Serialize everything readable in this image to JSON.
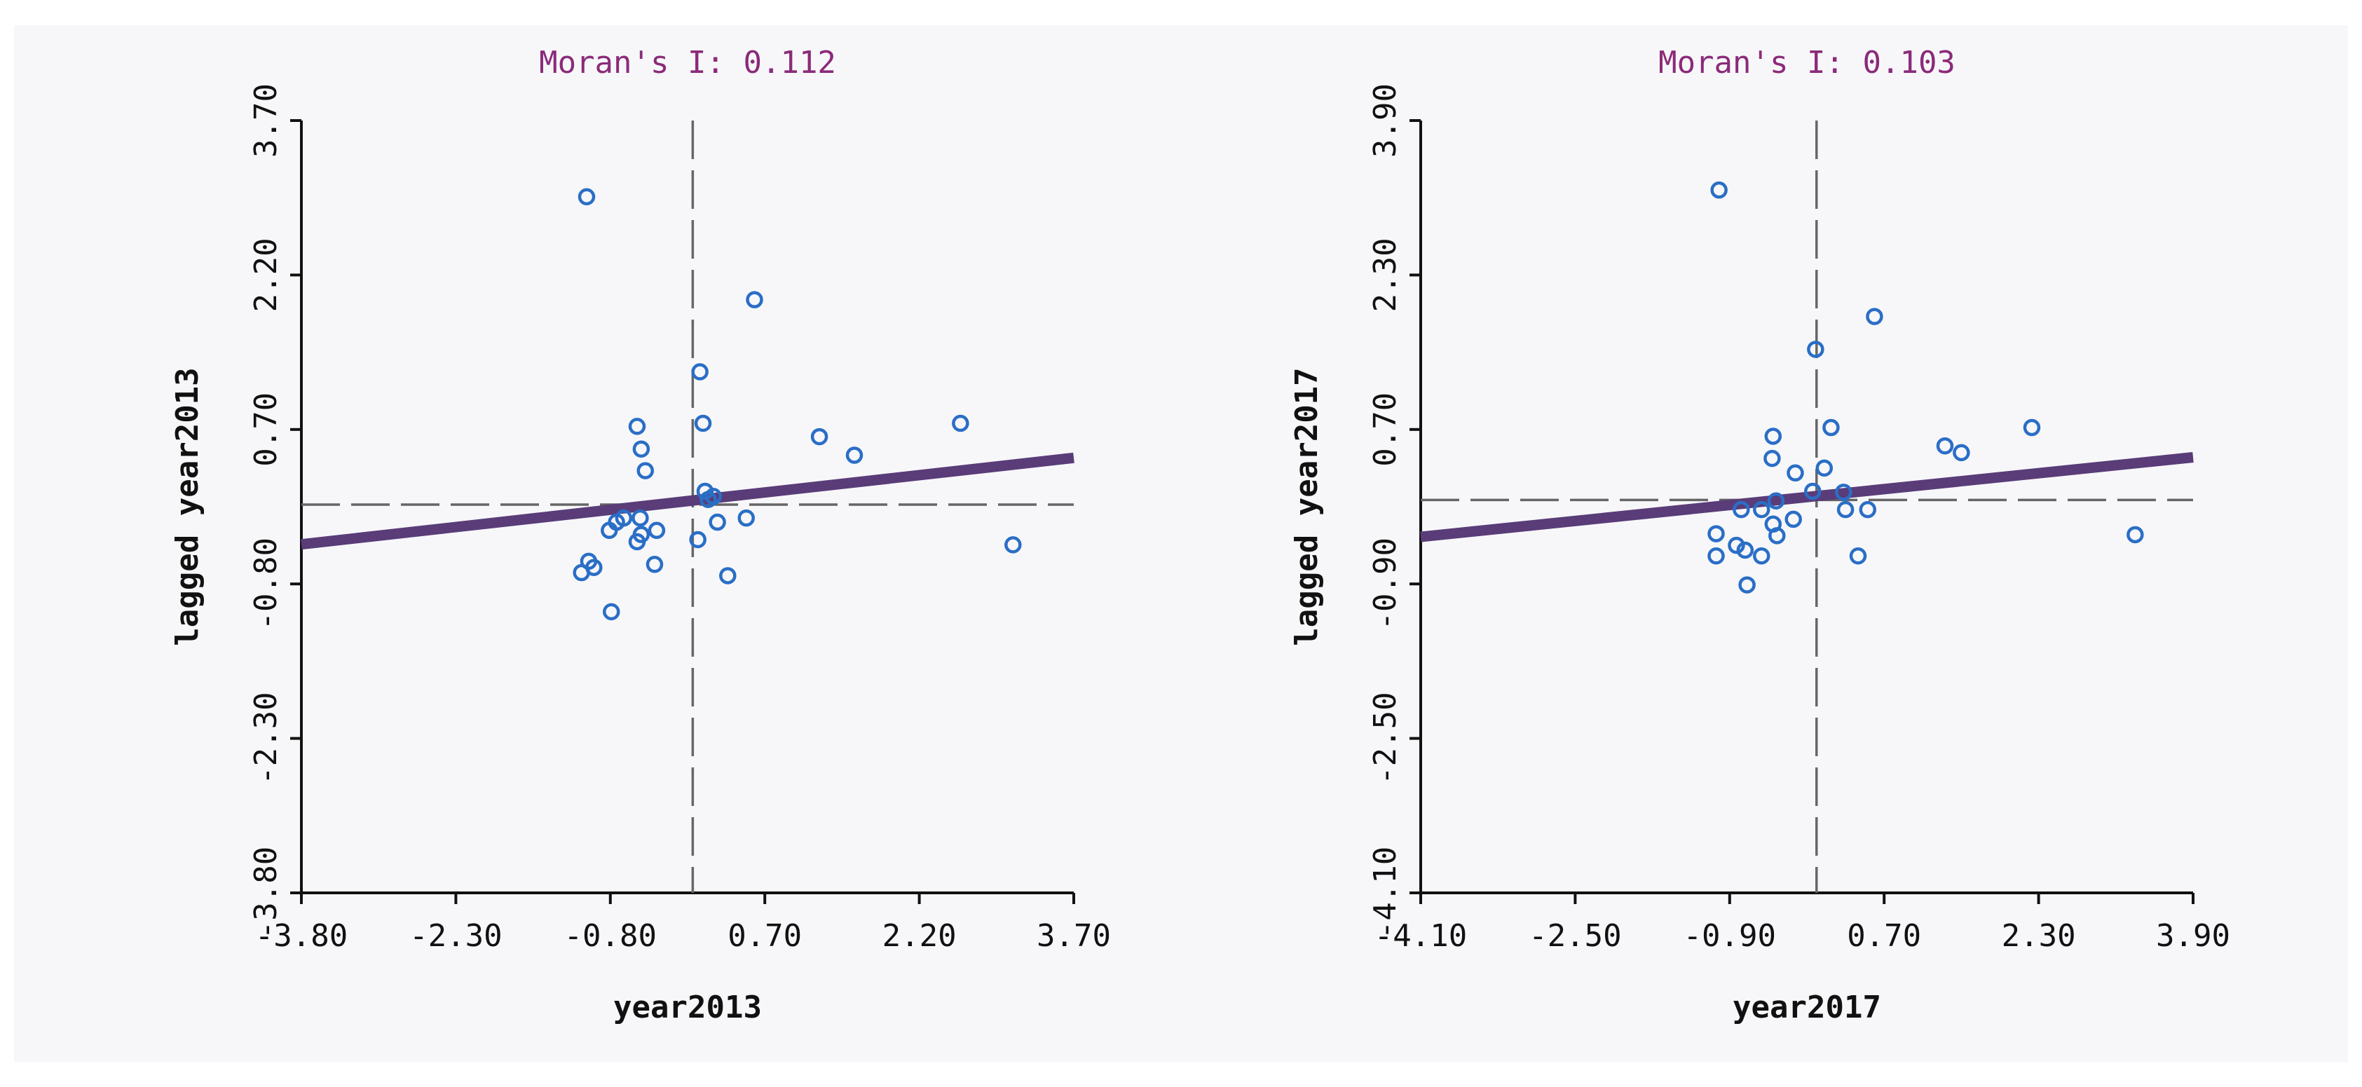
{
  "chart_data": [
    {
      "type": "scatter",
      "title": "Moran's I: 0.112",
      "xlabel": "year2013",
      "ylabel": "lagged year2013",
      "xlim": [
        -3.8,
        3.7
      ],
      "ylim": [
        -3.8,
        3.7
      ],
      "xticks": [
        "-3.80",
        "-2.30",
        "-0.80",
        "0.70",
        "2.20",
        "3.70"
      ],
      "yticks": [
        "-3.80",
        "-2.30",
        "-0.80",
        "0.70",
        "2.20",
        "3.70"
      ],
      "mean_x": 0.0,
      "mean_y": -0.03,
      "regression": {
        "slope": 0.112,
        "intercept": 0.01
      },
      "points": [
        [
          -1.03,
          2.96
        ],
        [
          -1.08,
          -0.69
        ],
        [
          -1.01,
          -0.58
        ],
        [
          -0.96,
          -0.64
        ],
        [
          -0.79,
          -1.07
        ],
        [
          -0.81,
          -0.28
        ],
        [
          -0.74,
          -0.2
        ],
        [
          -0.67,
          -0.16
        ],
        [
          -0.54,
          -0.39
        ],
        [
          -0.54,
          0.73
        ],
        [
          -0.51,
          -0.16
        ],
        [
          -0.5,
          -0.32
        ],
        [
          -0.5,
          0.51
        ],
        [
          -0.46,
          0.3
        ],
        [
          -0.37,
          -0.61
        ],
        [
          -0.35,
          -0.28
        ],
        [
          0.07,
          1.26
        ],
        [
          0.05,
          -0.37
        ],
        [
          0.1,
          0.76
        ],
        [
          0.12,
          0.1
        ],
        [
          0.15,
          0.02
        ],
        [
          0.2,
          0.05
        ],
        [
          0.24,
          -0.2
        ],
        [
          0.34,
          -0.72
        ],
        [
          0.52,
          -0.16
        ],
        [
          0.6,
          1.96
        ],
        [
          1.23,
          0.63
        ],
        [
          1.57,
          0.45
        ],
        [
          2.6,
          0.76
        ],
        [
          3.11,
          -0.42
        ]
      ]
    },
    {
      "type": "scatter",
      "title": "Moran's I: 0.103",
      "xlabel": "year2017",
      "ylabel": "lagged year2017",
      "xlim": [
        -4.1,
        3.9
      ],
      "ylim": [
        -4.1,
        3.9
      ],
      "xticks": [
        "-4.10",
        "-2.50",
        "-0.90",
        "0.70",
        "2.30",
        "3.90"
      ],
      "yticks": [
        "-4.10",
        "-2.50",
        "-0.90",
        "0.70",
        "2.30",
        "3.90"
      ],
      "mean_x": 0.0,
      "mean_y": -0.03,
      "regression": {
        "slope": 0.103,
        "intercept": 0.01
      },
      "points": [
        [
          -1.01,
          3.18
        ],
        [
          -1.04,
          -0.38
        ],
        [
          -1.04,
          -0.61
        ],
        [
          -0.83,
          -0.5
        ],
        [
          -0.74,
          -0.55
        ],
        [
          -0.78,
          -0.13
        ],
        [
          -0.72,
          -0.91
        ],
        [
          -0.57,
          -0.13
        ],
        [
          -0.57,
          -0.61
        ],
        [
          -0.46,
          0.4
        ],
        [
          -0.45,
          0.63
        ],
        [
          -0.45,
          -0.28
        ],
        [
          -0.42,
          -0.04
        ],
        [
          -0.41,
          -0.4
        ],
        [
          -0.24,
          -0.23
        ],
        [
          -0.22,
          0.25
        ],
        [
          -0.04,
          0.06
        ],
        [
          -0.01,
          1.53
        ],
        [
          0.08,
          0.3
        ],
        [
          0.15,
          0.72
        ],
        [
          0.28,
          0.05
        ],
        [
          0.3,
          -0.13
        ],
        [
          0.43,
          -0.61
        ],
        [
          0.53,
          -0.13
        ],
        [
          0.6,
          1.87
        ],
        [
          1.33,
          0.53
        ],
        [
          1.5,
          0.46
        ],
        [
          2.23,
          0.72
        ],
        [
          3.3,
          -0.39
        ]
      ]
    }
  ]
}
